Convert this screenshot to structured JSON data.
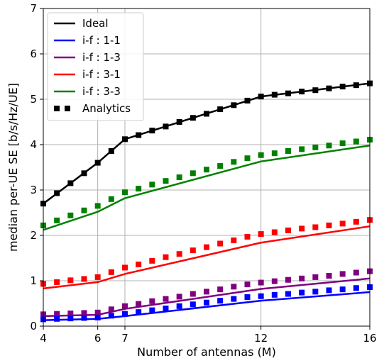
{
  "chart_data": {
    "type": "line",
    "xlabel": "Number of antennas (M)",
    "ylabel": "median per-UE SE [b/s/Hz/UE]",
    "xlim": [
      4,
      16
    ],
    "ylim": [
      0,
      7
    ],
    "xticks": [
      4,
      6,
      7,
      12,
      16
    ],
    "yticks": [
      0,
      1,
      2,
      3,
      4,
      5,
      6,
      7
    ],
    "grid": true,
    "legend_position": "top-left",
    "solid_x": [
      4,
      6,
      7,
      12,
      16
    ],
    "series": [
      {
        "name": "Ideal",
        "color": "#000000",
        "values": [
          2.7,
          3.6,
          4.12,
          5.06,
          5.35
        ]
      },
      {
        "name": "i-f : 1-1",
        "color": "#0000ff",
        "values": [
          0.13,
          0.16,
          0.22,
          0.56,
          0.75
        ]
      },
      {
        "name": "i-f : 1-3",
        "color": "#800080",
        "values": [
          0.22,
          0.25,
          0.38,
          0.82,
          1.05
        ]
      },
      {
        "name": "i-f : 3-1",
        "color": "#ff0000",
        "values": [
          0.83,
          0.97,
          1.15,
          1.84,
          2.2
        ]
      },
      {
        "name": "i-f : 3-3",
        "color": "#008000",
        "values": [
          2.12,
          2.52,
          2.82,
          3.63,
          3.98
        ]
      }
    ],
    "analytics": {
      "name": "Analytics",
      "x": [
        4,
        4.5,
        5,
        5.5,
        6,
        6.5,
        7,
        7.5,
        8,
        8.5,
        9,
        9.5,
        10,
        10.5,
        11,
        11.5,
        12,
        12.5,
        13,
        13.5,
        14,
        14.5,
        15,
        15.5,
        16
      ],
      "series": [
        {
          "color": "#000000",
          "values": [
            2.7,
            2.93,
            3.15,
            3.37,
            3.6,
            3.86,
            4.12,
            4.21,
            4.31,
            4.4,
            4.5,
            4.59,
            4.68,
            4.78,
            4.87,
            4.97,
            5.06,
            5.1,
            5.13,
            5.17,
            5.2,
            5.24,
            5.28,
            5.31,
            5.35
          ]
        },
        {
          "color": "#008000",
          "values": [
            2.22,
            2.33,
            2.44,
            2.55,
            2.65,
            2.8,
            2.95,
            3.03,
            3.12,
            3.2,
            3.28,
            3.37,
            3.45,
            3.53,
            3.62,
            3.7,
            3.77,
            3.81,
            3.86,
            3.9,
            3.94,
            3.98,
            4.03,
            4.07,
            4.11
          ]
        },
        {
          "color": "#ff0000",
          "values": [
            0.93,
            0.97,
            1.01,
            1.04,
            1.08,
            1.19,
            1.29,
            1.36,
            1.44,
            1.52,
            1.59,
            1.67,
            1.74,
            1.82,
            1.89,
            1.97,
            2.03,
            2.07,
            2.11,
            2.15,
            2.18,
            2.22,
            2.26,
            2.3,
            2.34
          ]
        },
        {
          "color": "#800080",
          "values": [
            0.26,
            0.27,
            0.28,
            0.29,
            0.3,
            0.37,
            0.44,
            0.49,
            0.55,
            0.6,
            0.65,
            0.71,
            0.76,
            0.81,
            0.87,
            0.92,
            0.96,
            0.99,
            1.02,
            1.05,
            1.08,
            1.11,
            1.15,
            1.18,
            1.21
          ]
        },
        {
          "color": "#0000ff",
          "values": [
            0.15,
            0.16,
            0.17,
            0.18,
            0.19,
            0.23,
            0.27,
            0.31,
            0.35,
            0.39,
            0.44,
            0.48,
            0.52,
            0.56,
            0.6,
            0.64,
            0.66,
            0.69,
            0.71,
            0.74,
            0.76,
            0.79,
            0.81,
            0.84,
            0.86
          ]
        }
      ]
    }
  }
}
